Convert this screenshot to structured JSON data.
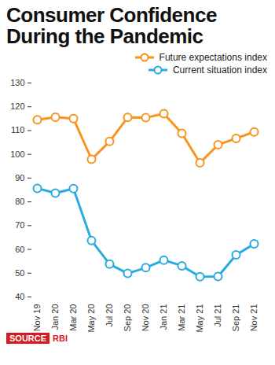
{
  "chart_data": {
    "type": "line",
    "title": "Consumer Confidence During the Pandemic",
    "categories": [
      "Nov 19",
      "Jan 20",
      "Mar 20",
      "May 20",
      "Jul 20",
      "Sep 20",
      "Nov 20",
      "Jan 21",
      "Mar 21",
      "May 21",
      "Jul 21",
      "Sep 21",
      "Nov 21"
    ],
    "series": [
      {
        "name": "Future expectations index",
        "color": "#f7941d",
        "marker": "circle",
        "line_style": "solid",
        "values": [
          114.5,
          115.6,
          115.0,
          97.9,
          105.4,
          115.5,
          115.4,
          117.1,
          108.8,
          96.4,
          104.0,
          106.7,
          109.4
        ]
      },
      {
        "name": "Current situation index",
        "color": "#29abe2",
        "marker": "circle",
        "line_style": "solid",
        "values": [
          85.7,
          83.7,
          85.6,
          63.7,
          53.8,
          49.9,
          52.3,
          55.5,
          53.1,
          48.5,
          48.6,
          57.7,
          62.3
        ]
      }
    ],
    "ylim": [
      40,
      130
    ],
    "yticks": [
      40,
      50,
      60,
      70,
      80,
      90,
      100,
      110,
      120,
      130
    ],
    "grid": false,
    "legend": "top-right",
    "source": {
      "label": "SOURCE",
      "text": "RBI"
    }
  }
}
